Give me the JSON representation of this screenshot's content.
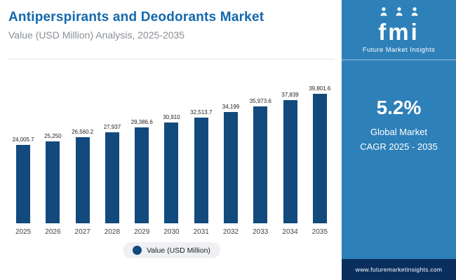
{
  "header": {
    "title": "Antiperspirants and Deodorants Market",
    "subtitle": "Value (USD Million) Analysis, 2025-2035"
  },
  "sidebar": {
    "logo_text": "fmi",
    "logo_icon": "people-icons",
    "brand_name": "Future Market Insights",
    "cagr_value": "5.2%",
    "cagr_line1": "Global Market",
    "cagr_line2": "CAGR 2025 - 2035",
    "footer_url": "www.futuremarketinsights.com"
  },
  "legend": {
    "label": "Value (USD Million)"
  },
  "chart_data": {
    "type": "bar",
    "title": "Antiperspirants and Deodorants Market Value (USD Million), 2025-2035",
    "categories": [
      "2025",
      "2026",
      "2027",
      "2028",
      "2029",
      "2030",
      "2031",
      "2032",
      "2033",
      "2034",
      "2035"
    ],
    "values": [
      24005.7,
      25250,
      26560.2,
      27937,
      29386.6,
      30910,
      32513.7,
      34199,
      35973.6,
      37839,
      39801.6
    ],
    "value_labels": [
      "24,005.7",
      "25,250",
      "26,560.2",
      "27,937",
      "29,386.6",
      "30,910",
      "32,513.7",
      "34,199",
      "35,973.6",
      "37,839",
      "39,801.6"
    ],
    "xlabel": "",
    "ylabel": "Value (USD Million)",
    "ylim": [
      0,
      40000
    ],
    "grid": false,
    "legend_position": "bottom-center"
  },
  "colors": {
    "title_blue": "#1268ae",
    "bar_navy": "#124a7d",
    "sidebar_blue": "#2e80b9",
    "footer_navy": "#0a2f5f"
  }
}
